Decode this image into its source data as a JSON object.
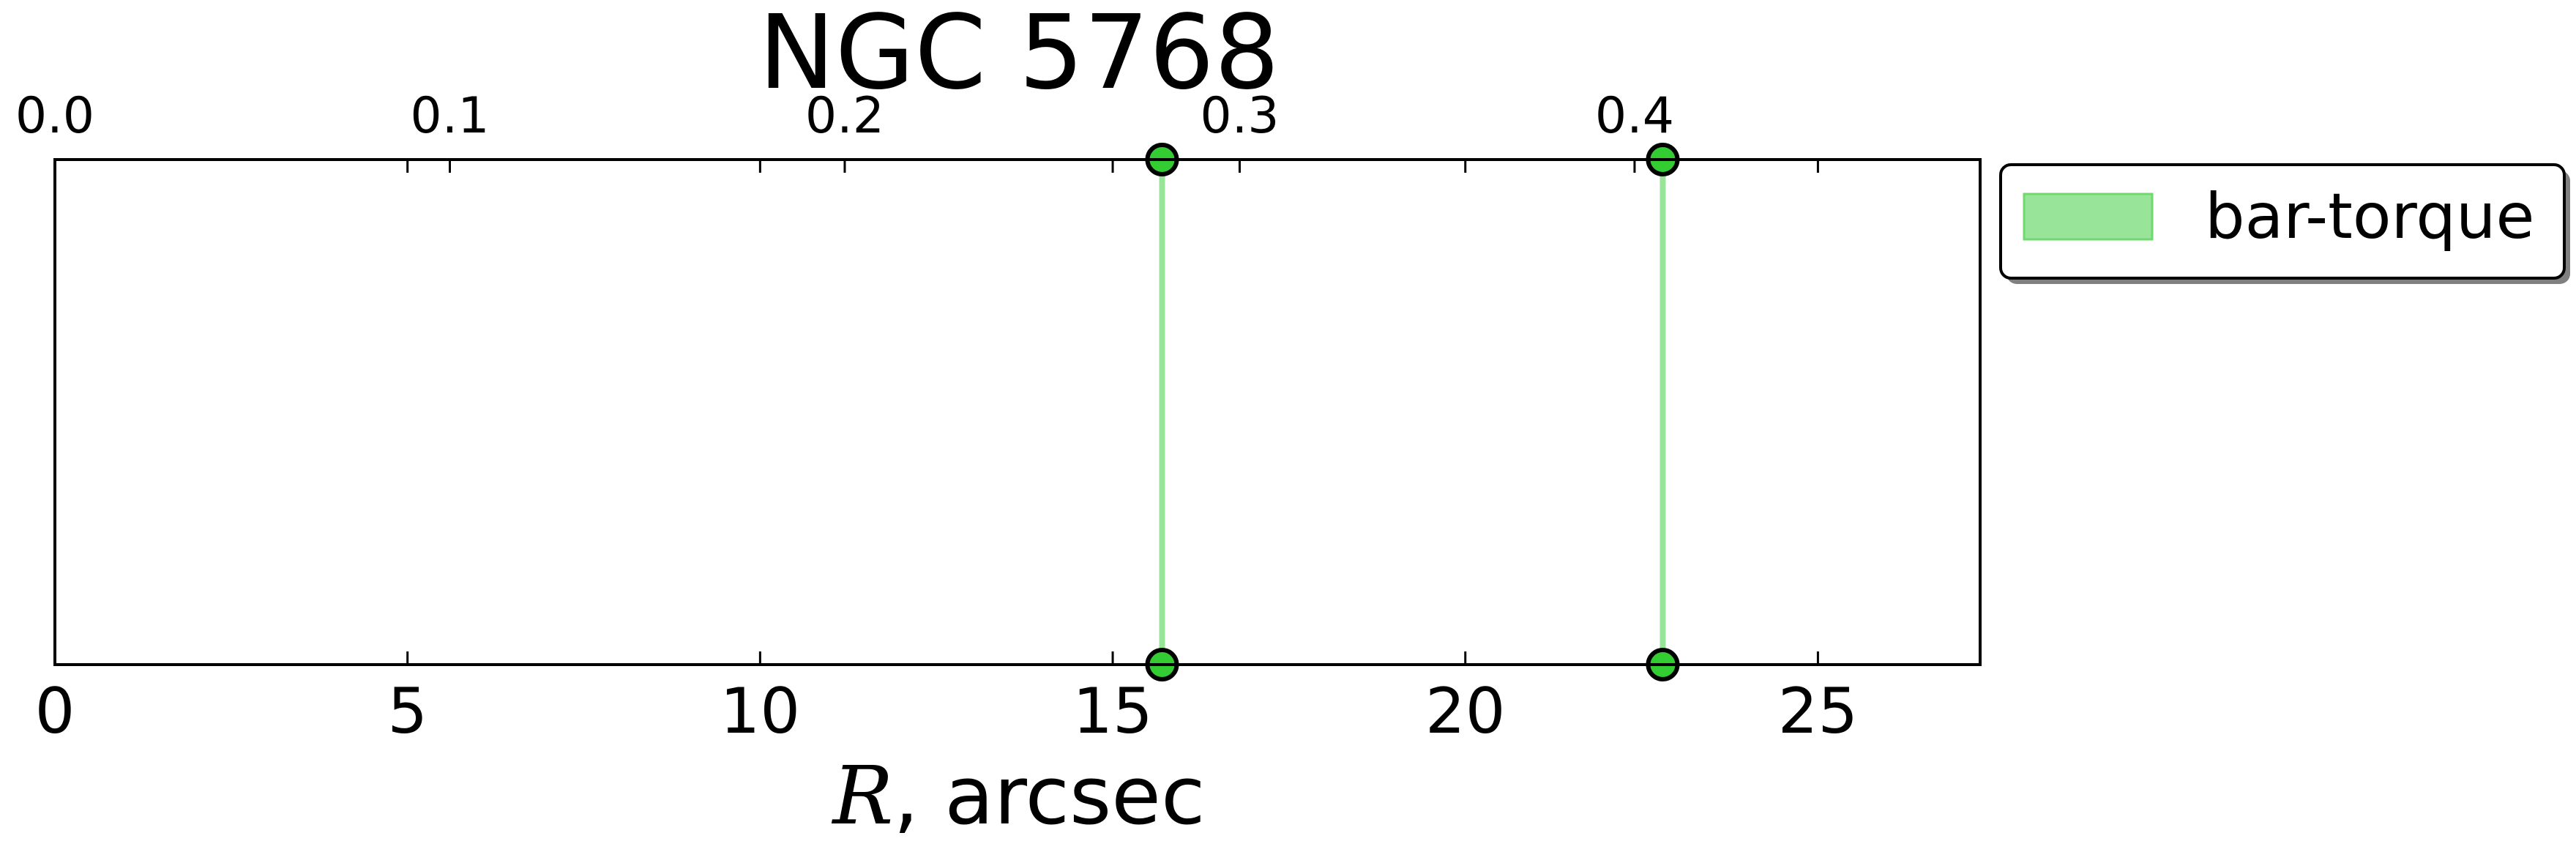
{
  "chart_data": {
    "type": "line",
    "title": "NGC 5768",
    "xlabel_symbol": "R",
    "xlabel_rest": ", arcsec",
    "xlim": [
      0,
      27.3
    ],
    "xticks": [
      0,
      5,
      10,
      15,
      20,
      25
    ],
    "xtick_labels": [
      "0",
      "5",
      "10",
      "15",
      "20",
      "25"
    ],
    "top_xlim": [
      0.0,
      0.4875
    ],
    "top_xticks": [
      0.0,
      0.1,
      0.2,
      0.3,
      0.4
    ],
    "top_xtick_labels": [
      "0.0",
      "0.1",
      "0.2",
      "0.3",
      "0.4"
    ],
    "ylim": [
      0,
      1
    ],
    "grid": false,
    "legend_position": "outside-right-top",
    "series": [
      {
        "name": "bar-torque",
        "color": "#98e498",
        "marker_color": "#33cc33",
        "x": [
          15.7,
          22.8
        ]
      }
    ]
  }
}
